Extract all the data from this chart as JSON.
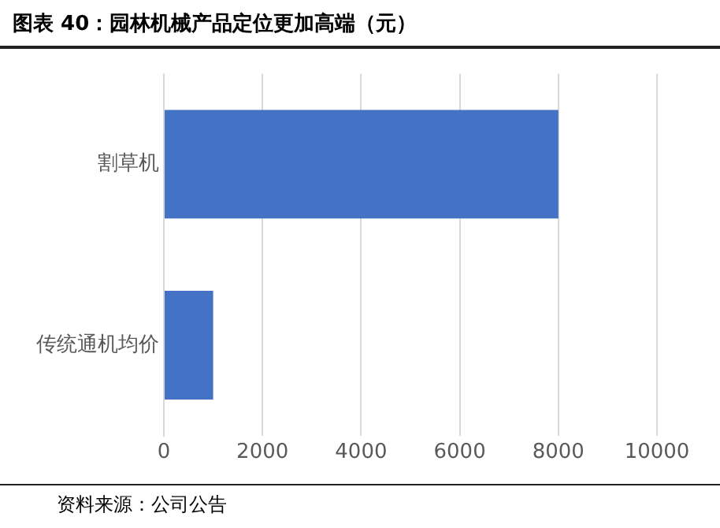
{
  "chart_data": {
    "type": "bar",
    "orientation": "horizontal",
    "title": "图表 40：园林机械产品定位更加高端（元）",
    "categories": [
      "割草机",
      "传统通机均价"
    ],
    "values": [
      8000,
      1000
    ],
    "color": "#4472c4",
    "xlim": [
      0,
      10000
    ],
    "xticks": [
      0,
      2000,
      4000,
      6000,
      8000,
      10000
    ],
    "grid": "x",
    "legend": false,
    "annotations": [
      "资料来源：公司公告"
    ]
  }
}
